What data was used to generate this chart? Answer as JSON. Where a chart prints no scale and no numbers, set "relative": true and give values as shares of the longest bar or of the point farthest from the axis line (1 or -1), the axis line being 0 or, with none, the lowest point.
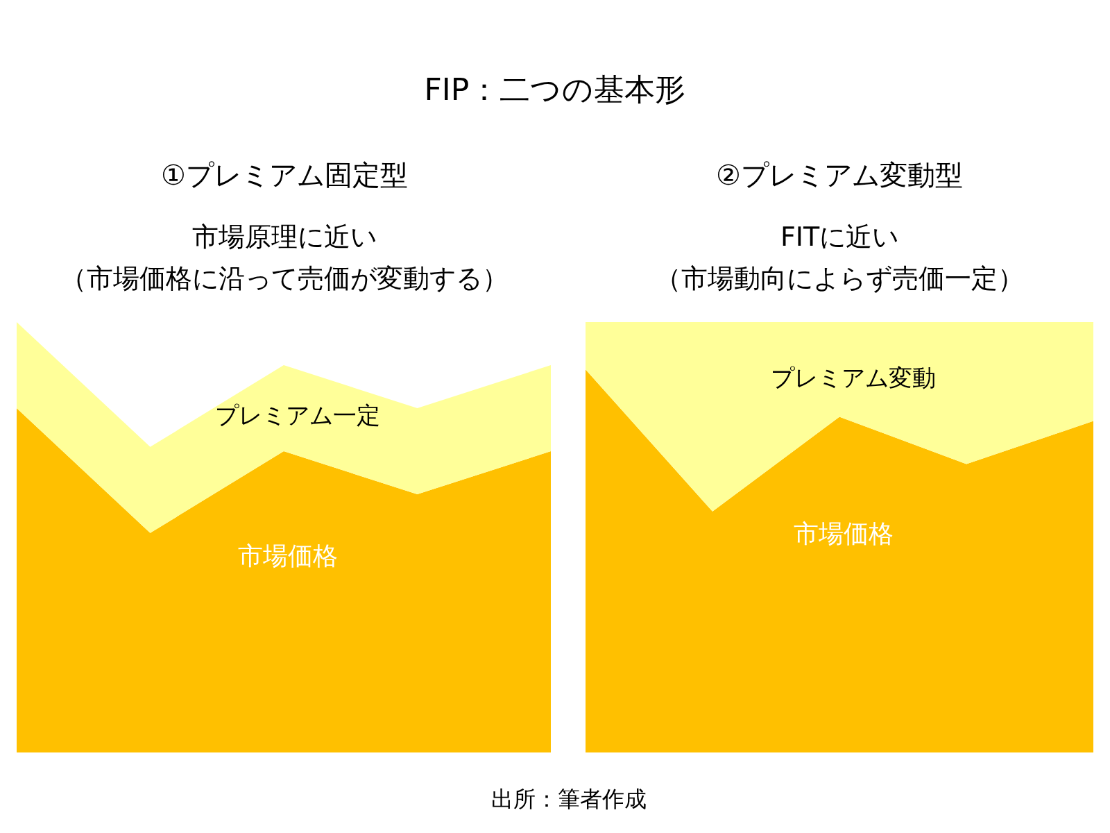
{
  "chart_data": [
    {
      "type": "other",
      "title": "FIP：二つの基本形",
      "annotations": [
        "出所：筆者作成"
      ]
    },
    {
      "type": "area",
      "title": "①プレミアム固定型",
      "subtitle": "市場原理に近い（市場価格に沿って売価が変動する）",
      "categories": [
        null,
        null,
        null,
        null,
        null
      ],
      "relative": true,
      "stacked": true,
      "marker": "none",
      "series": [
        {
          "name": "市場価格",
          "color": "#ffc000",
          "values": [
            0.8,
            0.51,
            0.7,
            0.6,
            0.7
          ]
        },
        {
          "name": "プレミアム一定",
          "color": "#ffff99",
          "values": [
            0.2,
            0.2,
            0.2,
            0.2,
            0.2
          ]
        }
      ]
    },
    {
      "type": "area",
      "title": "②プレミアム変動型",
      "subtitle": "FITに近い（市場動向によらず売価一定）",
      "categories": [
        null,
        null,
        null,
        null,
        null
      ],
      "relative": true,
      "stacked": true,
      "marker": "none",
      "series": [
        {
          "name": "市場価格",
          "color": "#ffc000",
          "values": [
            0.89,
            0.56,
            0.78,
            0.67,
            0.77
          ]
        },
        {
          "name": "プレミアム変動",
          "color": "#ffff99",
          "values": [
            0.11,
            0.44,
            0.22,
            0.33,
            0.23
          ]
        }
      ]
    }
  ]
}
